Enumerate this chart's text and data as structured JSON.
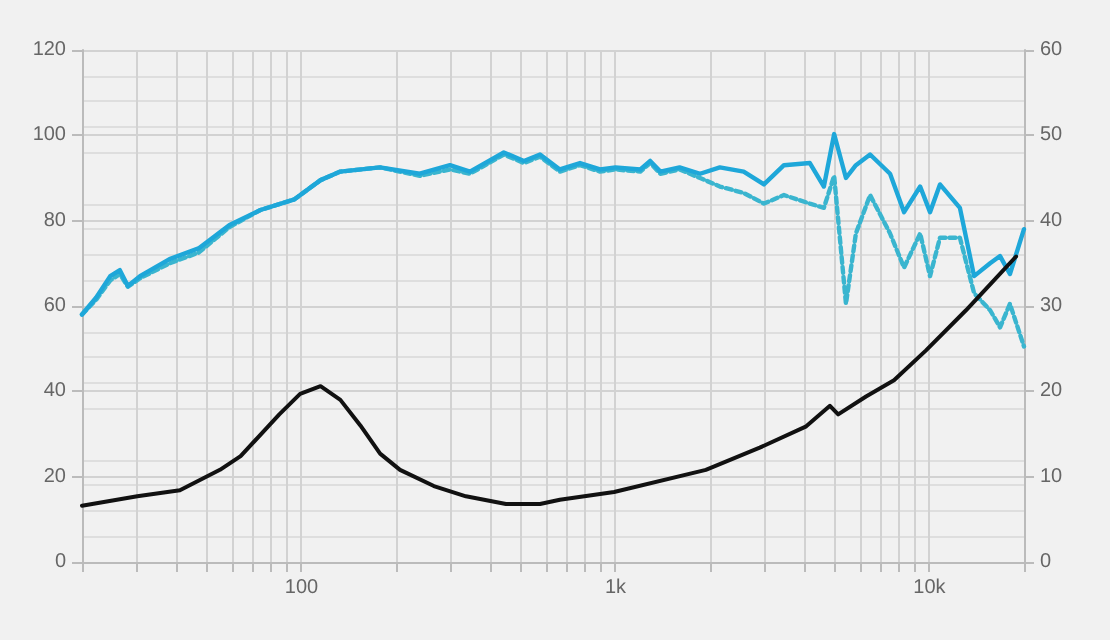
{
  "chart_data": {
    "type": "line",
    "log": "x",
    "grid": true,
    "marker": "none",
    "xlim": [
      20,
      20000
    ],
    "xticks": [
      {
        "value": 20,
        "label": null
      },
      {
        "value": 30,
        "label": null
      },
      {
        "value": 40,
        "label": null
      },
      {
        "value": 50,
        "label": null
      },
      {
        "value": 60,
        "label": null
      },
      {
        "value": 70,
        "label": null
      },
      {
        "value": 80,
        "label": null
      },
      {
        "value": 90,
        "label": null
      },
      {
        "value": 100,
        "label": "100"
      },
      {
        "value": 200,
        "label": null
      },
      {
        "value": 300,
        "label": null
      },
      {
        "value": 400,
        "label": null
      },
      {
        "value": 500,
        "label": null
      },
      {
        "value": 600,
        "label": null
      },
      {
        "value": 700,
        "label": null
      },
      {
        "value": 800,
        "label": null
      },
      {
        "value": 900,
        "label": null
      },
      {
        "value": 1000,
        "label": "1k"
      },
      {
        "value": 2000,
        "label": null
      },
      {
        "value": 3000,
        "label": null
      },
      {
        "value": 4000,
        "label": null
      },
      {
        "value": 5000,
        "label": null
      },
      {
        "value": 6000,
        "label": null
      },
      {
        "value": 7000,
        "label": null
      },
      {
        "value": 8000,
        "label": null
      },
      {
        "value": 9000,
        "label": null
      },
      {
        "value": 10000,
        "label": "10k"
      },
      {
        "value": 20000,
        "label": null
      }
    ],
    "ylim": [
      0,
      120
    ],
    "yticks": [
      0,
      20,
      40,
      60,
      80,
      100,
      120
    ],
    "y2lim": [
      0,
      60
    ],
    "y2ticks": [
      0,
      10,
      20,
      30,
      40,
      50,
      60
    ],
    "series": [
      {
        "color": "#3ab5cf",
        "line_style": "dashed",
        "x": [
          20,
          22.2,
          24.6,
          26.4,
          28,
          30.6,
          38,
          47,
          59,
          74,
          95,
          115,
          133,
          178,
          238,
          297,
          344,
          441,
          511,
          575,
          665,
          771,
          893,
          1000,
          1200,
          1290,
          1390,
          1600,
          1860,
          2150,
          2560,
          2970,
          3440,
          4160,
          4610,
          4970,
          5420,
          5830,
          6470,
          7490,
          8300,
          9340,
          10040,
          10800,
          12500,
          13870,
          15600,
          16780,
          18040,
          20000
        ],
        "values": [
          58,
          61.5,
          66,
          67.5,
          64.5,
          66.5,
          70,
          72.5,
          78.5,
          82.5,
          85,
          89.5,
          91.5,
          92.5,
          90.5,
          92,
          91,
          95.5,
          93.5,
          95,
          91.5,
          93,
          91.5,
          92,
          91.5,
          93.5,
          91,
          92,
          90,
          88,
          86.5,
          84,
          86,
          84,
          83,
          90.5,
          60.5,
          77,
          86,
          77,
          69,
          77,
          67,
          76,
          76,
          63,
          59,
          55,
          60.5,
          50.5
        ]
      },
      {
        "color": "#1ea7d9",
        "x": [
          20,
          22.2,
          24.6,
          26.4,
          28,
          30.6,
          38,
          47,
          59,
          74,
          95,
          115,
          133,
          178,
          238,
          297,
          344,
          441,
          511,
          575,
          665,
          771,
          893,
          1000,
          1200,
          1290,
          1390,
          1600,
          1860,
          2150,
          2560,
          2970,
          3440,
          4160,
          4610,
          4970,
          5420,
          5830,
          6470,
          7490,
          8300,
          9340,
          10040,
          10800,
          12500,
          13870,
          15600,
          16780,
          18040,
          20000
        ],
        "values": [
          58,
          62,
          67,
          68.4,
          64.7,
          67,
          71,
          73.5,
          79,
          82.5,
          85,
          89.5,
          91.5,
          92.5,
          91,
          93,
          91.5,
          96,
          94,
          95.5,
          92,
          93.5,
          92,
          92.5,
          92,
          94,
          91.5,
          92.5,
          91,
          92.5,
          91.5,
          88.5,
          93,
          93.5,
          88,
          100.3,
          90,
          93,
          95.5,
          91,
          82,
          88,
          82,
          88.5,
          83,
          67,
          70,
          71.7,
          67.5,
          78
        ]
      },
      {
        "color": "#111111",
        "axis": "y2",
        "x": [
          20,
          30,
          41,
          55,
          64,
          85,
          99,
          115,
          133,
          154,
          178,
          206,
          264,
          334,
          448,
          575,
          665,
          990,
          1940,
          2880,
          4050,
          4820,
          5120,
          6280,
          7710,
          9750,
          13070,
          16040,
          18870
        ],
        "values": [
          6.6,
          7.7,
          8.4,
          10.8,
          12.4,
          17.3,
          19.7,
          20.6,
          19,
          16,
          12.7,
          10.8,
          8.9,
          7.7,
          6.8,
          6.8,
          7.3,
          8.2,
          10.8,
          13.4,
          15.9,
          18.3,
          17.3,
          19.4,
          21.3,
          24.8,
          29.5,
          33,
          35.8
        ]
      }
    ]
  }
}
